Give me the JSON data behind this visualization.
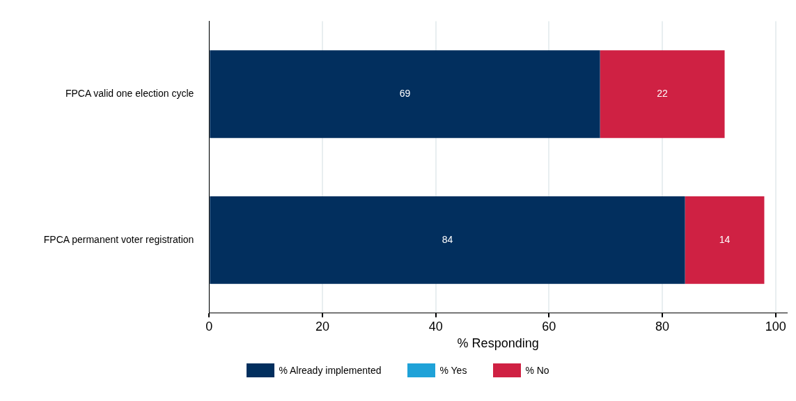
{
  "chart_data": {
    "type": "bar",
    "orientation": "horizontal",
    "stacked": true,
    "categories": [
      "FPCA valid one election cycle",
      "FPCA permanent voter registration"
    ],
    "series": [
      {
        "name": "% Already implemented",
        "color": "#022f5e",
        "values": [
          69,
          84
        ]
      },
      {
        "name": "% Yes",
        "color": "#1fa2d8",
        "values": [
          null,
          null
        ]
      },
      {
        "name": "% No",
        "color": "#cf2143",
        "values": [
          22,
          14
        ]
      }
    ],
    "xlabel": "% Responding",
    "xlim": [
      0,
      102
    ],
    "xticks": [
      0,
      20,
      40,
      60,
      80,
      100
    ],
    "grid": "x",
    "legend": "bottom",
    "data_labels": true
  }
}
